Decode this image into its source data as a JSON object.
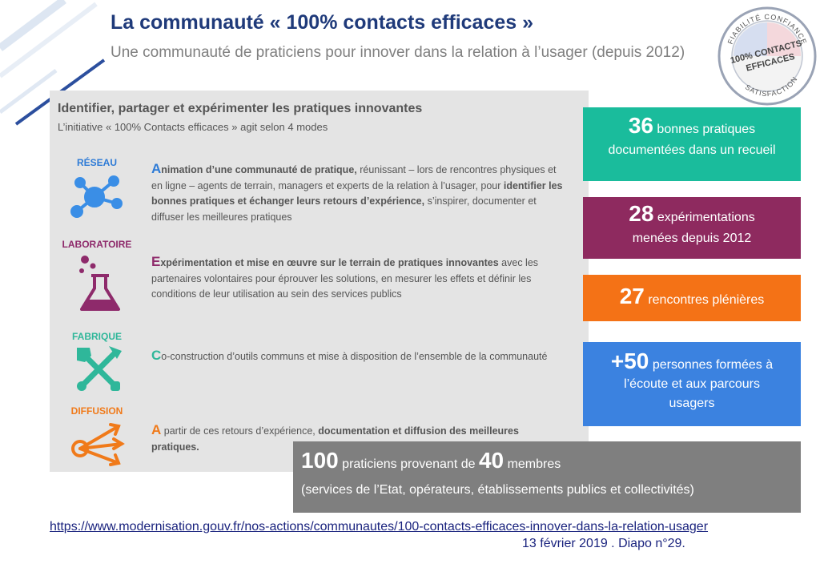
{
  "header": {
    "title": "La communauté « 100% contacts efficaces »",
    "subtitle": "Une communauté de praticiens pour innover dans la relation à l’usager (depuis 2012)"
  },
  "seal": {
    "top_text": "FIABILITÉ  CONFIANCE",
    "right_text": "EFFICACITÉ",
    "bottom_text": "SATISFACTION",
    "left_text": "ÉCOUTE",
    "center_line1": "100% CONTACTS",
    "center_line2": "EFFICACES"
  },
  "panel": {
    "title": "Identifier, partager et expérimenter les pratiques innovantes",
    "intro": "L’initiative  « 100% Contacts  efficaces » agit selon 4 modes",
    "modes": [
      {
        "label": "RÉSEAU",
        "color": "#2e7bd6",
        "icon": "network-icon",
        "lead": "A",
        "text_bold": "nimation  d’une communauté  de  pratique,",
        "text": " réunissant – lors de rencontres physiques et en ligne – agents de terrain, managers et experts de la relation à l’usager, pour ",
        "text_bold2": "identifier  les bonnes pratiques  et échanger  leurs retours d’expérience,",
        "text2": " s’inspirer,  documenter  et diffuser les meilleures pratiques"
      },
      {
        "label": "LABORATOIRE",
        "color": "#8e2a6b",
        "icon": "flask-icon",
        "lead": "E",
        "text_bold": "xpérimentation   et mise en œuvre sur le terrain  de pratiques  innovantes",
        "text": " avec les partenaires  volontaires  pour éprouver les solutions,  en mesurer les effets et définir  les conditions   de leur utilisation   au sein des services publics",
        "text_bold2": "",
        "text2": ""
      },
      {
        "label": "FABRIQUE",
        "color": "#2fb79a",
        "icon": "tools-icon",
        "lead": "C",
        "text_bold": "",
        "text": "o-construction  d’outils  communs  et mise à disposition  de l’ensemble de la communauté",
        "text_bold2": "",
        "text2": ""
      },
      {
        "label": "DIFFUSION",
        "color": "#f07a1a",
        "icon": "broadcast-icon",
        "lead": "A",
        "text_bold": "",
        "text": "  partir  de ces retours d’expérience, ",
        "text_bold2": "documentation   et diffusion des meilleures pratiques.",
        "text2": ""
      }
    ]
  },
  "stats": [
    {
      "number": "36",
      "text1": "bonnes pratiques",
      "text2": "documentées dans un recueil",
      "color": "#1abc9c"
    },
    {
      "number": "28",
      "text1": "expérimentations",
      "text2": "menées depuis 2012",
      "color": "#8e2a5f"
    },
    {
      "number": "27",
      "text1": "rencontres plénières",
      "text2": "",
      "color": "#f47216"
    },
    {
      "number": "+50",
      "text1": "personnes formées à",
      "text2": "l’écoute et aux parcours usagers",
      "color": "#3b82e0"
    }
  ],
  "members": {
    "number1": "100",
    "text1": "praticiens provenant de",
    "number2": "40",
    "text2": "membres",
    "line2": "(services de l’Etat, opérateurs, établissements publics et collectivités)"
  },
  "footer": {
    "url": "https://www.modernisation.gouv.fr/nos-actions/communautes/100-contacts-efficaces-innover-dans-la-relation-usager",
    "slide_info": "13 février 2019 . Diapo n°29."
  }
}
